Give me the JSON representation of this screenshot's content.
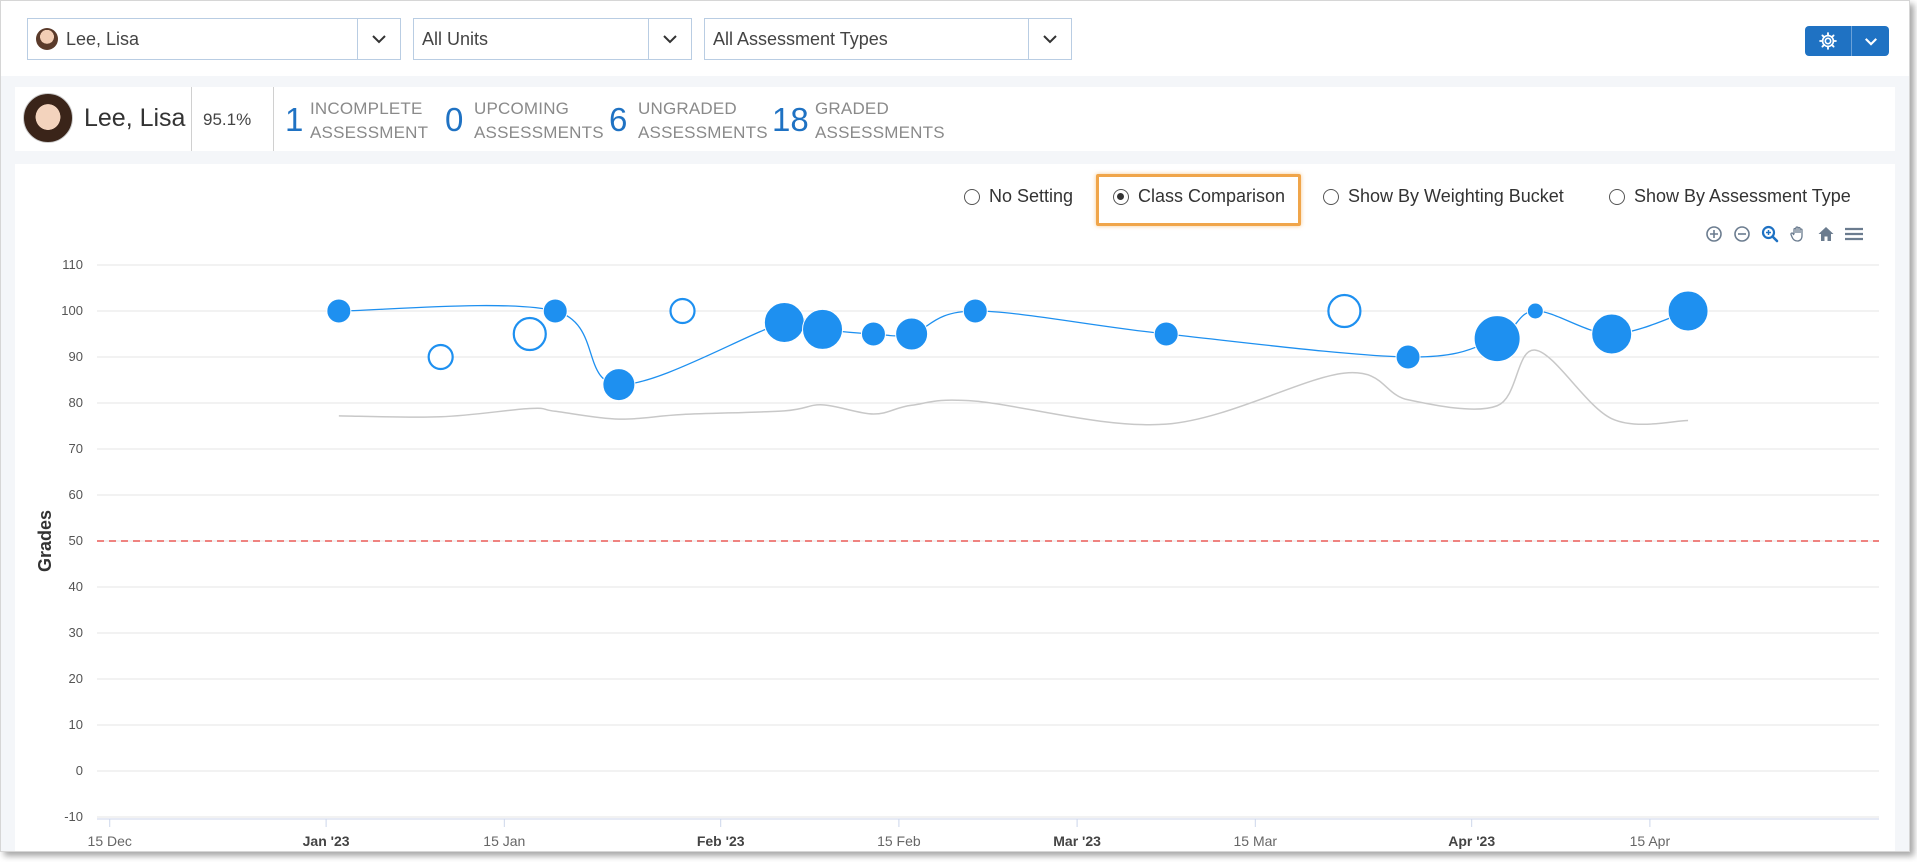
{
  "filters": {
    "student": "Lee, Lisa",
    "unit": "All Units",
    "assessment_type": "All Assessment Types"
  },
  "summary": {
    "student_name": "Lee, Lisa",
    "overall_grade": "95.1%",
    "stats": [
      {
        "count": "1",
        "line1": "INCOMPLETE",
        "line2": "ASSESSMENT"
      },
      {
        "count": "0",
        "line1": "UPCOMING",
        "line2": "ASSESSMENTS"
      },
      {
        "count": "6",
        "line1": "UNGRADED",
        "line2": "ASSESSMENTS"
      },
      {
        "count": "18",
        "line1": "GRADED",
        "line2": "ASSESSMENTS"
      }
    ]
  },
  "view_options": {
    "selected": "Class Comparison",
    "options": [
      "No Setting",
      "Class Comparison",
      "Show By Weighting Bucket",
      "Show By Assessment Type"
    ]
  },
  "toolbar_icons": [
    "zoom-in-icon",
    "zoom-out-icon",
    "magnify-icon",
    "pan-hand-icon",
    "home-icon",
    "menu-icon"
  ],
  "colors": {
    "accent": "#1f72c3",
    "bubble": "#1e90f0",
    "class_line": "#c8c8c8",
    "threshold_line": "#e53935",
    "highlight": "#f0a54a"
  },
  "chart_data": {
    "type": "scatter",
    "ylabel": "Grades",
    "ylim": [
      -10,
      110
    ],
    "yticks": [
      110,
      100,
      90,
      80,
      70,
      60,
      50,
      40,
      30,
      20,
      10,
      0,
      -10
    ],
    "xlim": [
      "2022-12-14",
      "2023-05-03"
    ],
    "xticks": [
      {
        "date": "2022-12-15",
        "label": "15 Dec",
        "bold": false
      },
      {
        "date": "2023-01-01",
        "label": "Jan '23",
        "bold": true
      },
      {
        "date": "2023-01-15",
        "label": "15 Jan",
        "bold": false
      },
      {
        "date": "2023-02-01",
        "label": "Feb '23",
        "bold": true
      },
      {
        "date": "2023-02-15",
        "label": "15 Feb",
        "bold": false
      },
      {
        "date": "2023-03-01",
        "label": "Mar '23",
        "bold": true
      },
      {
        "date": "2023-03-15",
        "label": "15 Mar",
        "bold": false
      },
      {
        "date": "2023-04-01",
        "label": "Apr '23",
        "bold": true
      },
      {
        "date": "2023-04-15",
        "label": "15 Apr",
        "bold": false
      }
    ],
    "threshold": 50,
    "student_series": [
      {
        "date": "2023-01-02",
        "value": 100,
        "size": "small",
        "graded": true
      },
      {
        "date": "2023-01-10",
        "value": 90,
        "size": "small",
        "graded": false
      },
      {
        "date": "2023-01-17",
        "value": 95,
        "size": "medium",
        "graded": false
      },
      {
        "date": "2023-01-19",
        "value": 100,
        "size": "small",
        "graded": true
      },
      {
        "date": "2023-01-24",
        "value": 84,
        "size": "medium",
        "graded": true
      },
      {
        "date": "2023-01-29",
        "value": 100,
        "size": "small",
        "graded": false
      },
      {
        "date": "2023-02-06",
        "value": 97.5,
        "size": "large",
        "graded": true
      },
      {
        "date": "2023-02-09",
        "value": 96,
        "size": "large",
        "graded": true
      },
      {
        "date": "2023-02-13",
        "value": 95,
        "size": "small",
        "graded": true
      },
      {
        "date": "2023-02-16",
        "value": 95,
        "size": "medium",
        "graded": true
      },
      {
        "date": "2023-02-21",
        "value": 100,
        "size": "small",
        "graded": true
      },
      {
        "date": "2023-03-08",
        "value": 95,
        "size": "small",
        "graded": true
      },
      {
        "date": "2023-03-22",
        "value": 100,
        "size": "medium",
        "graded": false
      },
      {
        "date": "2023-03-27",
        "value": 90,
        "size": "small",
        "graded": true
      },
      {
        "date": "2023-04-03",
        "value": 94,
        "size": "xlarge",
        "graded": true
      },
      {
        "date": "2023-04-06",
        "value": 100,
        "size": "tiny",
        "graded": true
      },
      {
        "date": "2023-04-12",
        "value": 95,
        "size": "large",
        "graded": true
      },
      {
        "date": "2023-04-18",
        "value": 100,
        "size": "large",
        "graded": true
      }
    ],
    "student_line": [
      {
        "date": "2023-01-02",
        "value": 100
      },
      {
        "date": "2023-01-19",
        "value": 100
      },
      {
        "date": "2023-01-24",
        "value": 84
      },
      {
        "date": "2023-02-06",
        "value": 97.5
      },
      {
        "date": "2023-02-09",
        "value": 96
      },
      {
        "date": "2023-02-13",
        "value": 95
      },
      {
        "date": "2023-02-16",
        "value": 95
      },
      {
        "date": "2023-02-21",
        "value": 100
      },
      {
        "date": "2023-03-08",
        "value": 95
      },
      {
        "date": "2023-03-27",
        "value": 90
      },
      {
        "date": "2023-04-03",
        "value": 94
      },
      {
        "date": "2023-04-06",
        "value": 100
      },
      {
        "date": "2023-04-12",
        "value": 95
      },
      {
        "date": "2023-04-18",
        "value": 100
      }
    ],
    "class_series": [
      {
        "date": "2023-01-02",
        "value": 77.2
      },
      {
        "date": "2023-01-10",
        "value": 77
      },
      {
        "date": "2023-01-17",
        "value": 78.8
      },
      {
        "date": "2023-01-19",
        "value": 78.2
      },
      {
        "date": "2023-01-24",
        "value": 76.5
      },
      {
        "date": "2023-01-29",
        "value": 77.5
      },
      {
        "date": "2023-02-06",
        "value": 78.3
      },
      {
        "date": "2023-02-09",
        "value": 79.6
      },
      {
        "date": "2023-02-13",
        "value": 77.6
      },
      {
        "date": "2023-02-16",
        "value": 79.5
      },
      {
        "date": "2023-02-21",
        "value": 80.4
      },
      {
        "date": "2023-03-08",
        "value": 75.4
      },
      {
        "date": "2023-03-22",
        "value": 86.5
      },
      {
        "date": "2023-03-27",
        "value": 80.7
      },
      {
        "date": "2023-04-03",
        "value": 79.4
      },
      {
        "date": "2023-04-06",
        "value": 91.5
      },
      {
        "date": "2023-04-12",
        "value": 76.6
      },
      {
        "date": "2023-04-18",
        "value": 76.2
      }
    ]
  }
}
